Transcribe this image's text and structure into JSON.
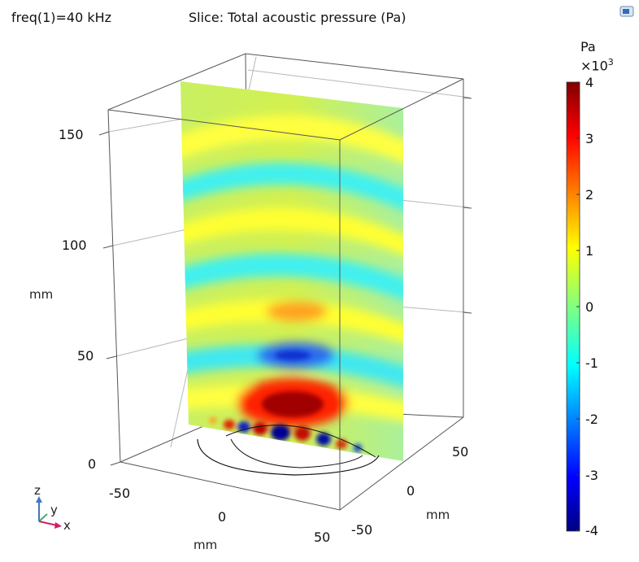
{
  "header": {
    "frequency": "freq(1)=40 kHz",
    "title": "Slice: Total acoustic pressure (Pa)"
  },
  "colorbar": {
    "unit": "Pa",
    "scale_base": "×10",
    "scale_exp": "3",
    "ticks": [
      "4",
      "3",
      "2",
      "1",
      "0",
      "-1",
      "-2",
      "-3",
      "-4"
    ],
    "colormap": [
      "#000080",
      "#0000ff",
      "#00ffff",
      "#ffff00",
      "#ff0000",
      "#800000"
    ]
  },
  "axes": {
    "z_ticks": [
      "150",
      "100",
      "50",
      "0"
    ],
    "z_unit": "mm",
    "x_ticks": [
      "-50",
      "0",
      "50"
    ],
    "x_unit": "mm",
    "y_ticks": [
      "50",
      "0",
      "-50"
    ],
    "y_unit": "mm"
  },
  "triad": {
    "z": "z",
    "y": "y",
    "x": "x"
  },
  "chart_data": {
    "type": "heatmap",
    "title": "Slice: Total acoustic pressure (Pa)",
    "subtitle": "freq(1)=40 kHz",
    "xlabel": "mm",
    "ylabel": "mm",
    "zlabel": "mm",
    "z_ticks": [
      0,
      50,
      100,
      150
    ],
    "x_ticks": [
      -50,
      0,
      50
    ],
    "y_ticks": [
      -50,
      0,
      50
    ],
    "color_range": [
      -4000,
      4000
    ],
    "colorbar_ticks": [
      4,
      3,
      2,
      1,
      0,
      -1,
      -2,
      -3,
      -4
    ],
    "colorbar_multiplier": 1000
  }
}
